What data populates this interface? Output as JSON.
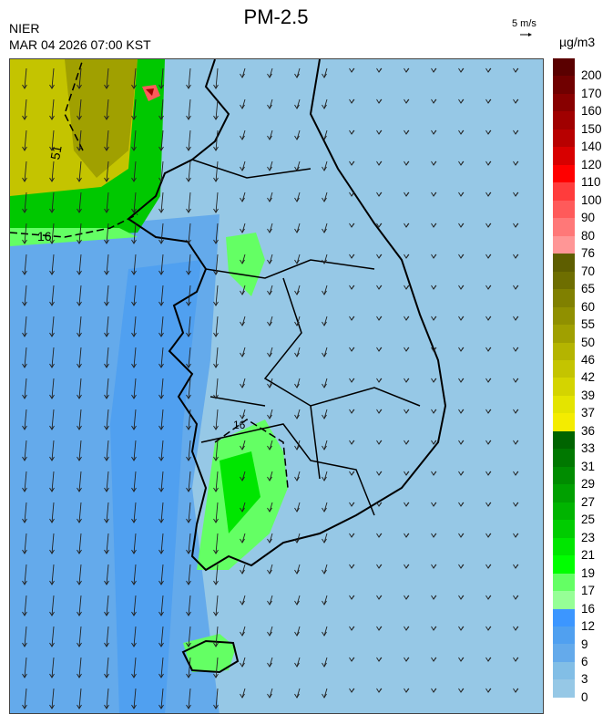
{
  "header": {
    "title": "PM-2.5",
    "organization": "NIER",
    "timestamp": "MAR 04 2026 07:00 KST",
    "wind_scale_label": "5 m/s",
    "unit": "µg/m3"
  },
  "map": {
    "variable": "PM-2.5",
    "contour_labels": [
      "51",
      "16",
      "16"
    ],
    "wind_direction": "mostly from north (southward arrows)",
    "background_color": "#96c8e6"
  },
  "legend": {
    "labels": [
      "200",
      "170",
      "160",
      "150",
      "140",
      "120",
      "110",
      "100",
      "90",
      "80",
      "76",
      "70",
      "65",
      "60",
      "55",
      "50",
      "46",
      "42",
      "39",
      "37",
      "36",
      "33",
      "31",
      "29",
      "27",
      "25",
      "23",
      "21",
      "19",
      "17",
      "16",
      "12",
      "9",
      "6",
      "3",
      "0"
    ],
    "colors": [
      "#5a0000",
      "#700000",
      "#880000",
      "#a00000",
      "#b80000",
      "#d80000",
      "#ff0000",
      "#ff3c3c",
      "#ff5a5a",
      "#ff7878",
      "#ff9696",
      "#5e5e00",
      "#6e6e00",
      "#808000",
      "#909000",
      "#a0a000",
      "#b4b400",
      "#c4c400",
      "#d4d400",
      "#e4e400",
      "#f4ec00",
      "#006400",
      "#007800",
      "#008c00",
      "#00a000",
      "#00b400",
      "#00cc00",
      "#00e600",
      "#00ff00",
      "#64ff64",
      "#96ff96",
      "#3c96ff",
      "#50a0f0",
      "#64aaeb",
      "#82bee6",
      "#96c8e6"
    ]
  }
}
